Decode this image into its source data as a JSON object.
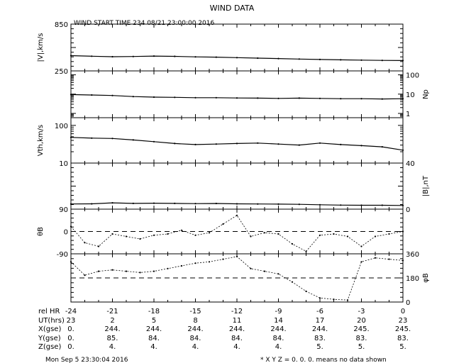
{
  "chart_data": {
    "type": "scatter",
    "title": "WIND DATA",
    "subtitle": "WIND START TIME 234 08/21 23:00:00 2016",
    "panels": [
      {
        "id": "v",
        "ylabel_left": "|V|,km/s",
        "ylabel_right": "",
        "ticks_left": [
          "850",
          "250"
        ],
        "ticks_right": [],
        "ylim": [
          250,
          850
        ],
        "scale": "linear",
        "series": {
          "name": "",
          "x": [
            -24,
            -22.5,
            -21,
            -19.5,
            -18,
            -16.5,
            -15,
            -13.5,
            -12,
            -10.5,
            -9,
            -7.5,
            -6,
            -4.5,
            -3,
            -1.5,
            0
          ],
          "y": [
            445,
            438,
            432,
            435,
            440,
            436,
            430,
            426,
            420,
            414,
            408,
            402,
            396,
            392,
            388,
            385,
            383
          ]
        }
      },
      {
        "id": "np",
        "ylabel_left": "",
        "ylabel_right": "Np",
        "ticks_left": [],
        "ticks_right": [
          "100",
          "10",
          "1"
        ],
        "ylim": [
          0.6,
          160
        ],
        "scale": "log",
        "series": {
          "name": "",
          "x": [
            -24,
            -22.5,
            -21,
            -19.5,
            -18,
            -16.5,
            -15,
            -13.5,
            -12,
            -10.5,
            -9,
            -7.5,
            -6,
            -4.5,
            -3,
            -1.5,
            0
          ],
          "y": [
            9.5,
            9.0,
            8.5,
            7.5,
            7.0,
            6.8,
            6.5,
            6.5,
            6.3,
            6.2,
            6.0,
            6.2,
            6.0,
            5.8,
            5.8,
            5.6,
            5.8
          ]
        }
      },
      {
        "id": "vth",
        "ylabel_left": "Vth,km/s",
        "ylabel_right": "",
        "ticks_left": [
          "100",
          "10"
        ],
        "ticks_right": [],
        "ylim": [
          10,
          160
        ],
        "scale": "log",
        "series": {
          "name": "",
          "x": [
            -24,
            -22.5,
            -21,
            -19.5,
            -18,
            -16.5,
            -15,
            -13.5,
            -12,
            -10.5,
            -9,
            -7.5,
            -6,
            -4.5,
            -3,
            -1.5,
            0
          ],
          "y": [
            48,
            46,
            45,
            41,
            37,
            33,
            31,
            32,
            33,
            34,
            32,
            30,
            34,
            31,
            29,
            27,
            22
          ]
        }
      },
      {
        "id": "b",
        "ylabel_left": "",
        "ylabel_right": "|B|,nT",
        "ticks_left": [],
        "ticks_right": [
          "40",
          "0"
        ],
        "ylim": [
          0,
          40
        ],
        "scale": "linear",
        "series": {
          "name": "",
          "x": [
            -24,
            -22.5,
            -21,
            -19.5,
            -18,
            -16.5,
            -15,
            -13.5,
            -12,
            -10.5,
            -9,
            -7.5,
            -6,
            -4.5,
            -3,
            -1.5,
            0
          ],
          "y": [
            4.5,
            4.6,
            5.5,
            5.0,
            5.2,
            5.0,
            4.8,
            4.9,
            4.6,
            4.5,
            4.4,
            4.2,
            3.8,
            3.5,
            3.4,
            3.4,
            3.2
          ]
        }
      },
      {
        "id": "theta",
        "ylabel_left": "θB",
        "ylabel_right": "",
        "ticks_left": [
          "90",
          "0",
          "-90"
        ],
        "ticks_right": [],
        "ylim": [
          -90,
          90
        ],
        "scale": "linear",
        "reference_line": 0,
        "series": {
          "name": "",
          "x": [
            -24,
            -23,
            -22,
            -21,
            -20,
            -19,
            -18,
            -17,
            -16,
            -15,
            -14,
            -13,
            -12,
            -11,
            -10,
            -9,
            -8,
            -7,
            -6,
            -5,
            -4,
            -3,
            -2,
            -1,
            0
          ],
          "y": [
            20,
            -45,
            -60,
            -10,
            -20,
            -30,
            -15,
            -10,
            5,
            -15,
            -5,
            30,
            65,
            -20,
            -5,
            -10,
            -50,
            -80,
            -15,
            -10,
            -20,
            -60,
            -20,
            -10,
            0
          ]
        }
      },
      {
        "id": "phi",
        "ylabel_left": "",
        "ylabel_right": "φB",
        "ticks_left": [],
        "ticks_right": [
          "360",
          "180",
          "0"
        ],
        "ylim": [
          0,
          360
        ],
        "scale": "linear",
        "reference_line": 180,
        "series": {
          "name": "",
          "x": [
            -24,
            -23,
            -22,
            -21,
            -20,
            -19,
            -18,
            -17,
            -16,
            -15,
            -14,
            -13,
            -12,
            -11,
            -10,
            -9,
            -8,
            -7,
            -6,
            -5,
            -4,
            -3,
            -2,
            -1,
            0
          ],
          "y": [
            300,
            200,
            230,
            240,
            230,
            220,
            230,
            250,
            270,
            290,
            300,
            320,
            340,
            250,
            230,
            210,
            150,
            80,
            30,
            20,
            15,
            300,
            330,
            320,
            310
          ]
        }
      }
    ],
    "x_axis": {
      "xlim": [
        -24,
        0
      ],
      "rows": [
        {
          "label": "rel HR",
          "values": [
            "-24",
            "-21",
            "-18",
            "-15",
            "-12",
            "-9",
            "-6",
            "-3",
            "0"
          ]
        },
        {
          "label": "UT(hrs)",
          "values": [
            "23",
            "2",
            "5",
            "8",
            "11",
            "14",
            "17",
            "20",
            "23"
          ]
        },
        {
          "label": "X(gse)",
          "values": [
            "0.",
            "244.",
            "244.",
            "244.",
            "244.",
            "244.",
            "244.",
            "245.",
            "245."
          ]
        },
        {
          "label": "Y(gse)",
          "values": [
            "0.",
            "85.",
            "84.",
            "84.",
            "84.",
            "84.",
            "83.",
            "83.",
            "83."
          ]
        },
        {
          "label": "Z(gse)",
          "values": [
            "0.",
            "4.",
            "4.",
            "4.",
            "4.",
            "4.",
            "5.",
            "5.",
            "5."
          ]
        }
      ]
    }
  },
  "footer": {
    "timestamp": "Mon Sep  5 23:30:04 2016",
    "note": "* X Y Z = 0. 0. 0. means no data shown"
  }
}
